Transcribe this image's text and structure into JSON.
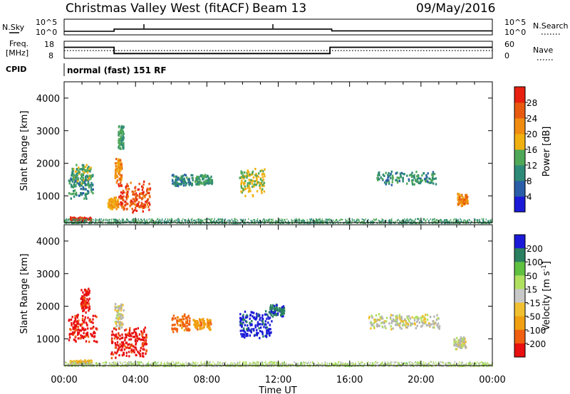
{
  "header": {
    "title": "Christmas Valley West (fitACF)",
    "beam": "Beam 13",
    "date": "09/May/2016"
  },
  "nsky_panel": {
    "left_label": "N.Sky",
    "left_ticks": [
      "10^5",
      "10^0"
    ],
    "right_ticks": [
      "10^5",
      "10^0"
    ],
    "right_label": "N.Search"
  },
  "freq_panel": {
    "left_label_top": "Freq.",
    "left_label_unit": "[MHz]",
    "left_ticks": [
      "18",
      "8"
    ],
    "right_ticks": [
      "60",
      "0"
    ],
    "right_label": "Nave",
    "cpid_label": "CPID",
    "cpid_value": "normal (fast) 151 RF"
  },
  "colors": {
    "power_scale": [
      "#1a1ad8",
      "#2a5ea8",
      "#2e8a78",
      "#4fa858",
      "#f0b010",
      "#f08c10",
      "#e85a10",
      "#e82010"
    ],
    "velocity_scale": [
      "#e81010",
      "#f06010",
      "#f0a010",
      "#f0c030",
      "#c8c8c8",
      "#b0e060",
      "#60c040",
      "#2a8060",
      "#1a1ad8"
    ],
    "ground_scatter": "#b4b4b4"
  },
  "chart_data": [
    {
      "type": "line",
      "title": "N.Sky / N.Search",
      "x_unit": "hours UT",
      "xlim": [
        0,
        24
      ],
      "y_scale": "log",
      "y_ticks": [
        "10^0",
        "10^5"
      ],
      "series": [
        {
          "x": [
            0,
            2.8,
            2.8,
            15,
            15,
            24
          ],
          "y": [
            10,
            10,
            60,
            60,
            14,
            14
          ]
        }
      ]
    },
    {
      "type": "line",
      "xlim": [
        0,
        24
      ],
      "ylim_left": [
        8,
        18
      ],
      "ylim_right": [
        0,
        60
      ],
      "series": [
        {
          "x": [
            0,
            2.8,
            2.8,
            14.9,
            14.9,
            24
          ],
          "y": [
            14.6,
            14.6,
            10.6,
            10.6,
            14.6,
            14.6
          ]
        },
        {
          "x": [
            0,
            24
          ],
          "y": [
            12.5,
            12.5
          ],
          "style": "dotted"
        }
      ]
    },
    {
      "type": "heatmap",
      "xlabel": "",
      "ylabel": "Slant Range [km]",
      "xlim": [
        0,
        24
      ],
      "ylim": [
        180,
        4500
      ],
      "y_ticks": [
        1000,
        2000,
        3000,
        4000
      ],
      "colorbar": {
        "label": "Power [dB]",
        "ticks": [
          4,
          8,
          12,
          16,
          20,
          24,
          28
        ],
        "range": [
          0,
          32
        ]
      },
      "regions": [
        {
          "t": [
            0.2,
            1.6
          ],
          "r": [
            900,
            1800
          ],
          "value": 10
        },
        {
          "t": [
            0.4,
            1.5
          ],
          "r": [
            1400,
            2000
          ],
          "value": 14
        },
        {
          "t": [
            0.3,
            1.5
          ],
          "r": [
            260,
            380
          ],
          "value": 30
        },
        {
          "t": [
            2.8,
            3.2
          ],
          "r": [
            1400,
            2200
          ],
          "value": 22
        },
        {
          "t": [
            2.4,
            3.0
          ],
          "r": [
            600,
            1000
          ],
          "value": 20
        },
        {
          "t": [
            3.0,
            4.8
          ],
          "r": [
            500,
            1500
          ],
          "value": 27
        },
        {
          "t": [
            3.0,
            3.3
          ],
          "r": [
            2400,
            3300
          ],
          "value": 12
        },
        {
          "t": [
            6.0,
            7.2
          ],
          "r": [
            1300,
            1700
          ],
          "value": 10
        },
        {
          "t": [
            7.3,
            8.3
          ],
          "r": [
            1350,
            1700
          ],
          "value": 12
        },
        {
          "t": [
            9.8,
            11.2
          ],
          "r": [
            1000,
            1900
          ],
          "value": 16
        },
        {
          "t": [
            17.5,
            20.8
          ],
          "r": [
            1350,
            1800
          ],
          "value": 11
        },
        {
          "t": [
            22.0,
            22.6
          ],
          "r": [
            700,
            1100
          ],
          "value": 22
        },
        {
          "t": [
            0.0,
            24.0
          ],
          "r": [
            180,
            320
          ],
          "value": 12
        }
      ]
    },
    {
      "type": "heatmap",
      "xlabel": "Time UT",
      "ylabel": "Slant Range [km]",
      "xlim": [
        0,
        24
      ],
      "ylim": [
        180,
        4500
      ],
      "x_ticks": [
        "00:00",
        "04:00",
        "08:00",
        "12:00",
        "16:00",
        "20:00",
        "00:00"
      ],
      "y_ticks": [
        1000,
        2000,
        3000,
        4000
      ],
      "colorbar": {
        "label": "Velocity [m s^-1]",
        "ticks": [
          200,
          100,
          50,
          15,
          -15,
          -50,
          -100,
          -200
        ]
      },
      "regions": [
        {
          "t": [
            0.2,
            1.8
          ],
          "r": [
            900,
            1800
          ],
          "value": -220
        },
        {
          "t": [
            0.9,
            1.4
          ],
          "r": [
            1800,
            2600
          ],
          "value": -220
        },
        {
          "t": [
            0.3,
            1.5
          ],
          "r": [
            260,
            380
          ],
          "value": -40
        },
        {
          "t": [
            2.8,
            3.3
          ],
          "r": [
            1300,
            2200
          ],
          "value": 0
        },
        {
          "t": [
            2.6,
            4.6
          ],
          "r": [
            400,
            1400
          ],
          "value": -220
        },
        {
          "t": [
            6.0,
            7.0
          ],
          "r": [
            1200,
            1800
          ],
          "value": -120
        },
        {
          "t": [
            7.2,
            8.2
          ],
          "r": [
            1300,
            1650
          ],
          "value": -80
        },
        {
          "t": [
            9.8,
            11.6
          ],
          "r": [
            1000,
            1900
          ],
          "value": 220
        },
        {
          "t": [
            11.5,
            12.3
          ],
          "r": [
            1700,
            2100
          ],
          "value": 180
        },
        {
          "t": [
            17.0,
            21.0
          ],
          "r": [
            1300,
            1800
          ],
          "value": 0
        },
        {
          "t": [
            21.8,
            22.5
          ],
          "r": [
            700,
            1100
          ],
          "value": 0
        },
        {
          "t": [
            0.0,
            24.0
          ],
          "r": [
            180,
            320
          ],
          "value": 25
        }
      ]
    }
  ]
}
